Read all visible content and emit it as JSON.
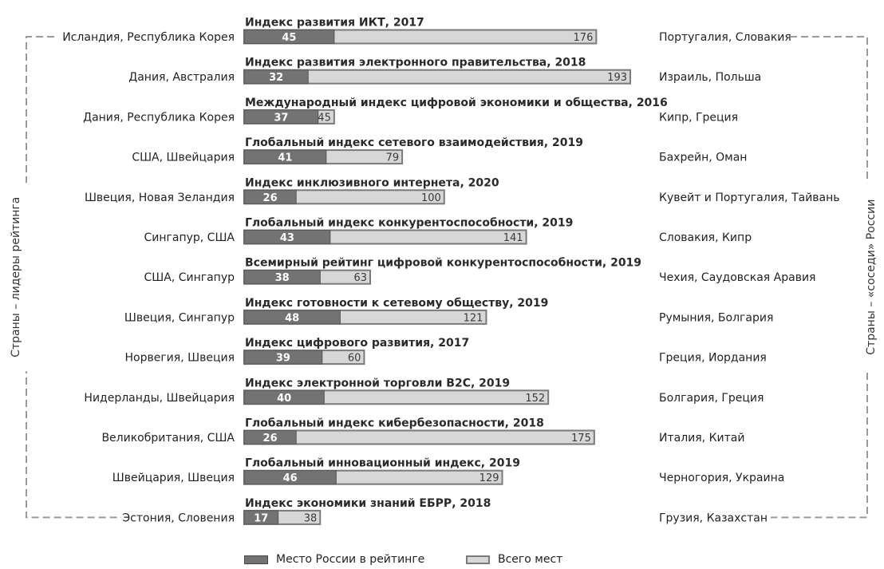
{
  "chart_data": {
    "type": "bar",
    "left_axis_label": "Страны – лидеры рейтинга",
    "right_axis_label": "Страны – «соседи» России",
    "legend": {
      "russia": "Место России в рейтинге",
      "total": "Всего мест"
    },
    "colors": {
      "russia_bar": "#737373",
      "total_bar": "#d7d7d7",
      "bar_border": "#7a7a7a",
      "bracket": "#9a9a9a"
    },
    "scale_max": 193,
    "rows": [
      {
        "title": "Индекс развития ИКТ, 2017",
        "leaders": "Исландия, Республика Корея",
        "russia_rank": 45,
        "total": 176,
        "neighbors": "Португалия, Словакия"
      },
      {
        "title": "Индекс развития электронного правительства, 2018",
        "leaders": "Дания, Австралия",
        "russia_rank": 32,
        "total": 193,
        "neighbors": "Израиль, Польша"
      },
      {
        "title": "Международный индекс цифровой экономики и общества, 2016",
        "leaders": "Дания, Республика Корея",
        "russia_rank": 37,
        "total": 45,
        "neighbors": "Кипр, Греция"
      },
      {
        "title": "Глобальный индекс сетевого взаимодействия, 2019",
        "leaders": "США, Швейцария",
        "russia_rank": 41,
        "total": 79,
        "neighbors": "Бахрейн, Оман"
      },
      {
        "title": "Индекс инклюзивного интернета, 2020",
        "leaders": "Швеция, Новая Зеландия",
        "russia_rank": 26,
        "total": 100,
        "neighbors": "Кувейт и Португалия, Тайвань"
      },
      {
        "title": "Глобальный индекс конкурентоспособности, 2019",
        "leaders": "Сингапур, США",
        "russia_rank": 43,
        "total": 141,
        "neighbors": "Словакия, Кипр"
      },
      {
        "title": "Всемирный рейтинг цифровой конкурентоспособности, 2019",
        "leaders": "США, Сингапур",
        "russia_rank": 38,
        "total": 63,
        "neighbors": "Чехия, Саудовская Аравия"
      },
      {
        "title": "Индекс готовности к сетевому обществу, 2019",
        "leaders": "Швеция, Сингапур",
        "russia_rank": 48,
        "total": 121,
        "neighbors": "Румыния, Болгария"
      },
      {
        "title": "Индекс цифрового развития, 2017",
        "leaders": "Норвегия, Швеция",
        "russia_rank": 39,
        "total": 60,
        "neighbors": "Греция, Иордания"
      },
      {
        "title": "Индекс электронной торговли B2C, 2019",
        "leaders": "Нидерланды, Швейцария",
        "russia_rank": 40,
        "total": 152,
        "neighbors": "Болгария, Греция"
      },
      {
        "title": "Глобальный индекс кибербезопасности, 2018",
        "leaders": "Великобритания, США",
        "russia_rank": 26,
        "total": 175,
        "neighbors": "Италия, Китай"
      },
      {
        "title": "Глобальный инновационный индекс, 2019",
        "leaders": "Швейцария, Швеция",
        "russia_rank": 46,
        "total": 129,
        "neighbors": "Черногория, Украина"
      },
      {
        "title": "Индекс экономики знаний ЕБРР, 2018",
        "leaders": "Эстония, Словения",
        "russia_rank": 17,
        "total": 38,
        "neighbors": "Грузия, Казахстан"
      }
    ]
  }
}
